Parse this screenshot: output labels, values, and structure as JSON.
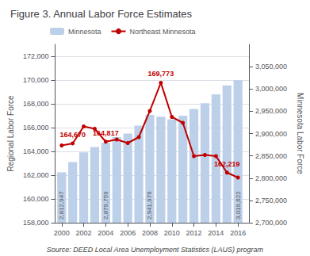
{
  "chart_data": {
    "type": "bar",
    "title": "Figure 3. Annual Labor Force Estimates",
    "source": "Source: DEED Local Area Unemployment Statistics (LAUS) program",
    "x": [
      2000,
      2001,
      2002,
      2003,
      2004,
      2005,
      2006,
      2007,
      2008,
      2009,
      2010,
      2011,
      2012,
      2013,
      2014,
      2015,
      2016
    ],
    "xlim": [
      1999.4,
      2017.0
    ],
    "xticks": [
      2000,
      2002,
      2004,
      2006,
      2008,
      2010,
      2012,
      2014,
      2016
    ],
    "ylabel": "Regional Labor Force",
    "ylim": [
      158000,
      173000
    ],
    "yticks": [
      {
        "value": 158000,
        "label": "158,000"
      },
      {
        "value": 160000,
        "label": "160,000"
      },
      {
        "value": 162000,
        "label": "162,000"
      },
      {
        "value": 164000,
        "label": "164,000"
      },
      {
        "value": 166000,
        "label": "166,000"
      },
      {
        "value": 168000,
        "label": "168,000"
      },
      {
        "value": 170000,
        "label": "170,000"
      },
      {
        "value": 172000,
        "label": "172,000"
      }
    ],
    "y2label": "Minnesota Labor Force",
    "y2lim": [
      2700000,
      3100000
    ],
    "y2ticks": [
      {
        "value": 2700000,
        "label": "2,700,000"
      },
      {
        "value": 2750000,
        "label": "2,750,000"
      },
      {
        "value": 2800000,
        "label": "2,800,000"
      },
      {
        "value": 2850000,
        "label": "2,850,000"
      },
      {
        "value": 2900000,
        "label": "2,900,000"
      },
      {
        "value": 2950000,
        "label": "2,950,000"
      },
      {
        "value": 3000000,
        "label": "3,000,000"
      },
      {
        "value": 3050000,
        "label": "3,050,000"
      }
    ],
    "grid": true,
    "legend": "upper left",
    "series": [
      {
        "name": "Minnesota",
        "type": "bar",
        "axis": "y2",
        "color": "#bdd0e9",
        "values": [
          2812947,
          2836000,
          2858000,
          2870000,
          2879759,
          2892000,
          2900000,
          2918000,
          2941976,
          2938000,
          2932000,
          2940000,
          2955000,
          2968000,
          2988000,
          3008000,
          3019622
        ],
        "value_labels": [
          "2,812,947",
          null,
          null,
          null,
          "2,879,759",
          null,
          null,
          null,
          "2,941,976",
          null,
          null,
          null,
          null,
          null,
          null,
          null,
          "3,019,622"
        ]
      },
      {
        "name": "Northeast Minnesota",
        "type": "line",
        "color": "#c00000",
        "marker": "circle",
        "values": [
          164500,
          164670,
          166100,
          165900,
          164817,
          165000,
          164700,
          165200,
          167400,
          169773,
          166900,
          166400,
          163600,
          163700,
          163600,
          162219,
          161800
        ],
        "value_labels": [
          null,
          "164,670",
          null,
          null,
          "164,817",
          null,
          null,
          null,
          null,
          "169,773",
          null,
          null,
          null,
          null,
          null,
          "162,219",
          null
        ]
      }
    ]
  }
}
